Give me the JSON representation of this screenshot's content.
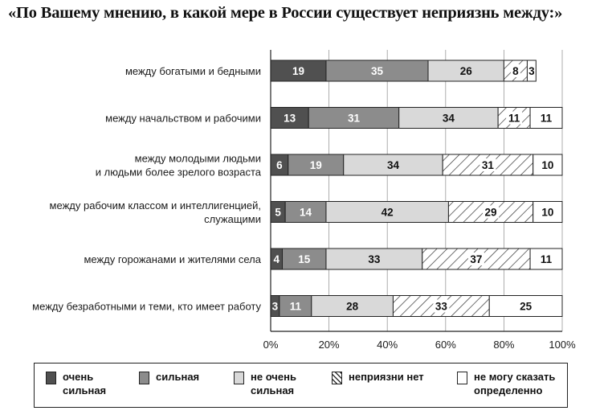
{
  "title": "«По Вашему мнению, в какой мере в России существует неприязнь между:»",
  "chart_data": {
    "type": "bar",
    "orientation": "horizontal",
    "stacked": true,
    "categories": [
      "между богатыми и бедными",
      "между начальством и рабочими",
      "между молодыми людьми\nи людьми более зрелого возраста",
      "между рабочим классом и интеллигенцией,\nслужащими",
      "между горожанами и жителями села",
      "между безработными и теми, кто имеет работу"
    ],
    "series": [
      {
        "name": "очень\nсильная",
        "color": "#505050",
        "pattern": "solid",
        "values": [
          19,
          13,
          6,
          5,
          4,
          3
        ]
      },
      {
        "name": "сильная",
        "color": "#8c8c8c",
        "pattern": "solid",
        "values": [
          35,
          31,
          19,
          14,
          15,
          11
        ]
      },
      {
        "name": "не очень\nсильная",
        "color": "#d9d9d9",
        "pattern": "solid",
        "values": [
          26,
          34,
          34,
          42,
          33,
          28
        ]
      },
      {
        "name": "неприязни нет",
        "color": "#ffffff",
        "pattern": "hatch",
        "values": [
          8,
          11,
          31,
          29,
          37,
          33
        ]
      },
      {
        "name": "не могу сказать\nопределенно",
        "color": "#ffffff",
        "pattern": "solid",
        "values": [
          3,
          11,
          10,
          10,
          11,
          25
        ]
      }
    ],
    "xlim": [
      0,
      100
    ],
    "xticks": [
      "0%",
      "20%",
      "40%",
      "60%",
      "80%",
      "100%"
    ],
    "grid": true,
    "legend": "bottom"
  }
}
